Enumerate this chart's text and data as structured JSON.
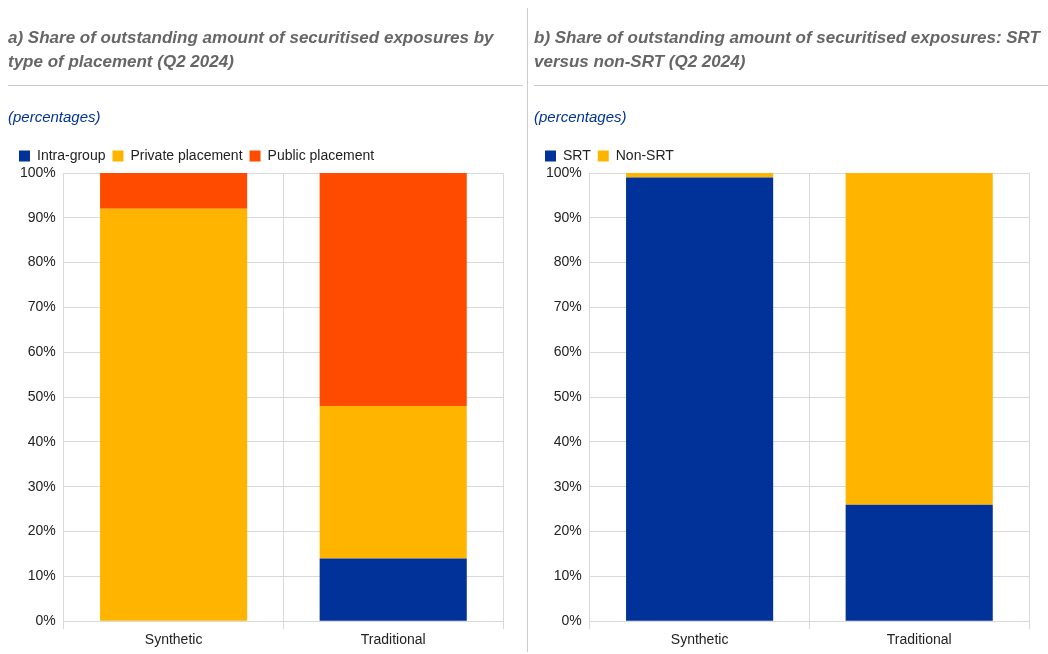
{
  "chart_data": [
    {
      "type": "bar",
      "stacked": true,
      "title": "a) Share of outstanding amount of securitised exposures by type of placement (Q2 2024)",
      "subtitle": "(percentages)",
      "categories": [
        "Synthetic",
        "Traditional"
      ],
      "series": [
        {
          "name": "Intra-group",
          "color": "#003299",
          "values": [
            0,
            14
          ]
        },
        {
          "name": "Private placement",
          "color": "#ffb400",
          "values": [
            92,
            34
          ]
        },
        {
          "name": "Public placement",
          "color": "#ff4b00",
          "values": [
            8,
            52
          ]
        }
      ],
      "ylim": [
        0,
        100
      ],
      "yticks": [
        {
          "value": 0,
          "label": "0%"
        },
        {
          "value": 10,
          "label": "10%"
        },
        {
          "value": 20,
          "label": "20%"
        },
        {
          "value": 30,
          "label": "30%"
        },
        {
          "value": 40,
          "label": "40%"
        },
        {
          "value": 50,
          "label": "50%"
        },
        {
          "value": 60,
          "label": "60%"
        },
        {
          "value": 70,
          "label": "70%"
        },
        {
          "value": 80,
          "label": "80%"
        },
        {
          "value": 90,
          "label": "90%"
        },
        {
          "value": 100,
          "label": "100%"
        }
      ],
      "grid": true,
      "legend": "top left"
    },
    {
      "type": "bar",
      "stacked": true,
      "title": "b) Share of outstanding amount of securitised exposures: SRT versus non-SRT (Q2 2024)",
      "subtitle": "(percentages)",
      "categories": [
        "Synthetic",
        "Traditional"
      ],
      "series": [
        {
          "name": "SRT",
          "color": "#003299",
          "values": [
            99,
            26
          ]
        },
        {
          "name": "Non-SRT",
          "color": "#ffb400",
          "values": [
            1,
            74
          ]
        }
      ],
      "ylim": [
        0,
        100
      ],
      "yticks": [
        {
          "value": 0,
          "label": "0%"
        },
        {
          "value": 10,
          "label": "10%"
        },
        {
          "value": 20,
          "label": "20%"
        },
        {
          "value": 30,
          "label": "30%"
        },
        {
          "value": 40,
          "label": "40%"
        },
        {
          "value": 50,
          "label": "50%"
        },
        {
          "value": 60,
          "label": "60%"
        },
        {
          "value": 70,
          "label": "70%"
        },
        {
          "value": 80,
          "label": "80%"
        },
        {
          "value": 90,
          "label": "90%"
        },
        {
          "value": 100,
          "label": "100%"
        }
      ],
      "grid": true,
      "legend": "top left"
    }
  ]
}
